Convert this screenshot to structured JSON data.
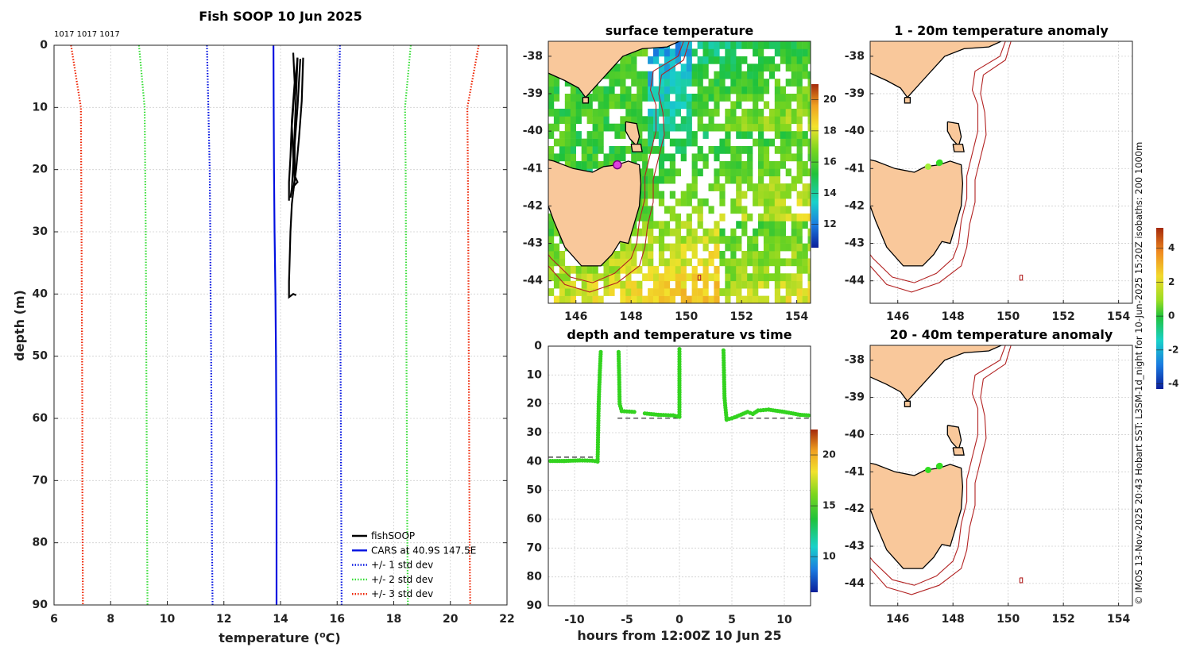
{
  "chart_data": [
    {
      "id": "profile",
      "type": "line",
      "title": "Fish SOOP 10 Jun 2025",
      "top_note": "1017 1017 1017",
      "xlabel": "temperature (",
      "xlabel_sup": "o",
      "xlabel_end": "C)",
      "ylabel": "depth (m)",
      "xlim": [
        6,
        22
      ],
      "ylim": [
        0,
        90
      ],
      "xticks": [
        6,
        8,
        10,
        12,
        14,
        16,
        18,
        20,
        22
      ],
      "yticks": [
        0,
        10,
        20,
        30,
        40,
        50,
        60,
        70,
        80,
        90
      ],
      "legend": [
        {
          "label": "fishSOOP",
          "color": "#000000",
          "style": "solid"
        },
        {
          "label": "CARS at 40.9S 147.5E",
          "color": "#0010e0",
          "style": "solid"
        },
        {
          "label": "+/- 1 std dev",
          "color": "#0010e0",
          "style": "dotted"
        },
        {
          "label": "+/- 2 std dev",
          "color": "#33dd33",
          "style": "dotted"
        },
        {
          "label": "+/- 3 std dev",
          "color": "#ee2200",
          "style": "dotted"
        }
      ],
      "series": [
        {
          "name": "CARS",
          "color": "#0010e0",
          "style": "solid",
          "points": [
            [
              13.75,
              0
            ],
            [
              13.76,
              10
            ],
            [
              13.77,
              20
            ],
            [
              13.79,
              30
            ],
            [
              13.82,
              40
            ],
            [
              13.84,
              50
            ],
            [
              13.85,
              60
            ],
            [
              13.86,
              70
            ],
            [
              13.86,
              80
            ],
            [
              13.86,
              90
            ]
          ]
        },
        {
          "name": "-1 std",
          "color": "#0010e0",
          "style": "dotted",
          "points": [
            [
              11.4,
              0
            ],
            [
              11.45,
              10
            ],
            [
              11.5,
              20
            ],
            [
              11.52,
              30
            ],
            [
              11.53,
              40
            ],
            [
              11.55,
              50
            ],
            [
              11.56,
              60
            ],
            [
              11.57,
              70
            ],
            [
              11.58,
              80
            ],
            [
              11.6,
              90
            ]
          ]
        },
        {
          "name": "+1 std",
          "color": "#0010e0",
          "style": "dotted",
          "points": [
            [
              16.1,
              0
            ],
            [
              16.06,
              10
            ],
            [
              16.08,
              20
            ],
            [
              16.1,
              30
            ],
            [
              16.1,
              40
            ],
            [
              16.12,
              50
            ],
            [
              16.13,
              60
            ],
            [
              16.14,
              70
            ],
            [
              16.15,
              80
            ],
            [
              16.16,
              90
            ]
          ]
        },
        {
          "name": "-2 std",
          "color": "#33dd33",
          "style": "dotted",
          "points": [
            [
              9.0,
              0
            ],
            [
              9.2,
              10
            ],
            [
              9.22,
              20
            ],
            [
              9.24,
              30
            ],
            [
              9.25,
              40
            ],
            [
              9.26,
              50
            ],
            [
              9.27,
              60
            ],
            [
              9.28,
              70
            ],
            [
              9.29,
              80
            ],
            [
              9.3,
              90
            ]
          ]
        },
        {
          "name": "+2 std",
          "color": "#33dd33",
          "style": "dotted",
          "points": [
            [
              18.6,
              0
            ],
            [
              18.4,
              10
            ],
            [
              18.42,
              20
            ],
            [
              18.43,
              30
            ],
            [
              18.44,
              40
            ],
            [
              18.45,
              50
            ],
            [
              18.46,
              60
            ],
            [
              18.47,
              70
            ],
            [
              18.48,
              80
            ],
            [
              18.5,
              90
            ]
          ]
        },
        {
          "name": "-3 std",
          "color": "#ee2200",
          "style": "dotted",
          "points": [
            [
              6.6,
              0
            ],
            [
              6.95,
              10
            ],
            [
              6.96,
              20
            ],
            [
              6.97,
              30
            ],
            [
              6.98,
              40
            ],
            [
              6.99,
              50
            ],
            [
              7.0,
              60
            ],
            [
              7.0,
              70
            ],
            [
              7.01,
              80
            ],
            [
              7.02,
              90
            ]
          ]
        },
        {
          "name": "+3 std",
          "color": "#ee2200",
          "style": "dotted",
          "points": [
            [
              21.0,
              0
            ],
            [
              20.6,
              10
            ],
            [
              20.62,
              20
            ],
            [
              20.63,
              30
            ],
            [
              20.64,
              40
            ],
            [
              20.65,
              50
            ],
            [
              20.66,
              60
            ],
            [
              20.67,
              70
            ],
            [
              20.68,
              80
            ],
            [
              20.7,
              90
            ]
          ]
        },
        {
          "name": "fishSOOP cast 1",
          "color": "#000000",
          "style": "solid",
          "points": [
            [
              14.45,
              1.2
            ],
            [
              14.5,
              6
            ],
            [
              14.4,
              12
            ],
            [
              14.35,
              18
            ],
            [
              14.3,
              22
            ],
            [
              14.3,
              25
            ]
          ]
        },
        {
          "name": "fishSOOP cast 2",
          "color": "#000000",
          "style": "solid",
          "points": [
            [
              14.6,
              2
            ],
            [
              14.55,
              8
            ],
            [
              14.5,
              14
            ],
            [
              14.45,
              19
            ],
            [
              14.4,
              23
            ],
            [
              14.35,
              24.5
            ]
          ]
        },
        {
          "name": "fishSOOP cast 3",
          "color": "#000000",
          "style": "solid",
          "points": [
            [
              14.8,
              2
            ],
            [
              14.75,
              9
            ],
            [
              14.65,
              15
            ],
            [
              14.55,
              20
            ],
            [
              14.45,
              23.5
            ]
          ]
        },
        {
          "name": "fishSOOP cast 4",
          "color": "#000000",
          "style": "solid",
          "points": [
            [
              14.7,
              2.2
            ],
            [
              14.6,
              10
            ],
            [
              14.5,
              16
            ],
            [
              14.5,
              21
            ],
            [
              14.6,
              22
            ],
            [
              14.4,
              23
            ]
          ]
        },
        {
          "name": "fishSOOP cast 5",
          "color": "#000000",
          "style": "solid",
          "points": [
            [
              14.6,
              2
            ],
            [
              14.5,
              7
            ],
            [
              14.4,
              13
            ],
            [
              14.45,
              18
            ],
            [
              14.5,
              21.5
            ],
            [
              14.4,
              25.5
            ],
            [
              14.35,
              30
            ],
            [
              14.32,
              35
            ],
            [
              14.3,
              38
            ],
            [
              14.3,
              40.5
            ],
            [
              14.45,
              40
            ],
            [
              14.55,
              40.2
            ]
          ]
        }
      ]
    },
    {
      "id": "sst",
      "type": "heatmap",
      "title": "surface temperature",
      "xlim": [
        145,
        154.5
      ],
      "ylim": [
        -44.6,
        -37.6
      ],
      "xticks": [
        146,
        148,
        150,
        152,
        154
      ],
      "yticks": [
        -38,
        -39,
        -40,
        -41,
        -42,
        -43,
        -44
      ],
      "colorbar": {
        "min": 10.5,
        "max": 21,
        "ticks": [
          12,
          14,
          16,
          18,
          20
        ]
      },
      "fish_location": [
        147.5,
        -40.9
      ]
    },
    {
      "id": "timeseries",
      "type": "scatter",
      "title": "depth and temperature vs time",
      "xlabel": "hours from 12:00Z 10 Jun 25",
      "xlim": [
        -12.5,
        12.5
      ],
      "ylim": [
        0,
        90
      ],
      "xticks": [
        -10,
        -5,
        0,
        5,
        10
      ],
      "yticks": [
        0,
        10,
        20,
        30,
        40,
        50,
        60,
        70,
        80,
        90
      ],
      "colorbar": {
        "min": 6.5,
        "max": 22.5,
        "ticks": [
          10,
          15,
          20
        ]
      },
      "bottom_lines": [
        {
          "x": [
            -12.5,
            -7.9
          ],
          "depth": 38.5
        },
        {
          "x": [
            -5.9,
            0.1
          ],
          "depth": 25
        },
        {
          "x": [
            4.3,
            12.5
          ],
          "depth": 25
        }
      ],
      "segments": [
        [
          [
            -12.3,
            39.8
          ],
          [
            -11,
            39.8
          ],
          [
            -9.5,
            39.6
          ],
          [
            -8.3,
            39.7
          ],
          [
            -7.8,
            40
          ]
        ],
        [
          [
            -7.8,
            40
          ],
          [
            -7.75,
            30
          ],
          [
            -7.7,
            20
          ],
          [
            -7.6,
            10
          ],
          [
            -7.5,
            2
          ]
        ],
        [
          [
            -5.8,
            2
          ],
          [
            -5.75,
            10
          ],
          [
            -5.7,
            20
          ],
          [
            -5.5,
            22.5
          ],
          [
            -4.3,
            22.8
          ]
        ],
        [
          [
            -3.3,
            23.3
          ],
          [
            -2,
            23.8
          ],
          [
            -0.6,
            24
          ],
          [
            0,
            24.5
          ]
        ],
        [
          [
            0,
            24.5
          ],
          [
            0,
            16
          ],
          [
            0,
            8
          ],
          [
            0,
            1
          ]
        ],
        [
          [
            4.2,
            1.5
          ],
          [
            4.25,
            10
          ],
          [
            4.3,
            18
          ],
          [
            4.5,
            25.5
          ],
          [
            5,
            25
          ],
          [
            5.5,
            24.3
          ],
          [
            6.5,
            22.8
          ],
          [
            7,
            23.5
          ],
          [
            7.5,
            22.3
          ],
          [
            8.5,
            22
          ],
          [
            10,
            22.8
          ],
          [
            11.5,
            23.8
          ],
          [
            12.3,
            24
          ]
        ]
      ]
    },
    {
      "id": "anom1",
      "type": "heatmap",
      "title": "1 - 20m temperature anomaly",
      "xlim": [
        145,
        154.5
      ],
      "ylim": [
        -44.6,
        -37.6
      ],
      "xticks": [
        146,
        148,
        150,
        152,
        154
      ],
      "yticks": [
        -38,
        -39,
        -40,
        -41,
        -42,
        -43,
        -44
      ],
      "dots": [
        [
          147.1,
          -40.95,
          "#a6f03a"
        ],
        [
          147.5,
          -40.85,
          "#33dd22"
        ],
        [
          147.52,
          -40.84,
          "#33dd22"
        ]
      ]
    },
    {
      "id": "anom2",
      "type": "heatmap",
      "title": "20 - 40m temperature anomaly",
      "xlim": [
        145,
        154.5
      ],
      "ylim": [
        -44.6,
        -37.6
      ],
      "xticks": [
        146,
        148,
        150,
        152,
        154
      ],
      "yticks": [
        -38,
        -39,
        -40,
        -41,
        -42,
        -43,
        -44
      ],
      "dots": [
        [
          147.1,
          -40.95,
          "#33dd22"
        ],
        [
          147.5,
          -40.85,
          "#33dd22"
        ],
        [
          147.52,
          -40.84,
          "#33dd22"
        ]
      ]
    },
    {
      "id": "anomaly_colorbar",
      "type": "colorbar",
      "min": -4.3,
      "max": 5.2,
      "ticks": [
        -4,
        -2,
        0,
        2,
        4
      ]
    }
  ],
  "credit": "© IMOS 13-Nov-2025 20:43 Hobart SST: L3SM-1d_night for 10-Jun-2025 15:20Z isobaths: 200  1000m",
  "colors": {
    "land": "#f9c89b",
    "coast": "#000000",
    "isobath": "#b22222"
  }
}
